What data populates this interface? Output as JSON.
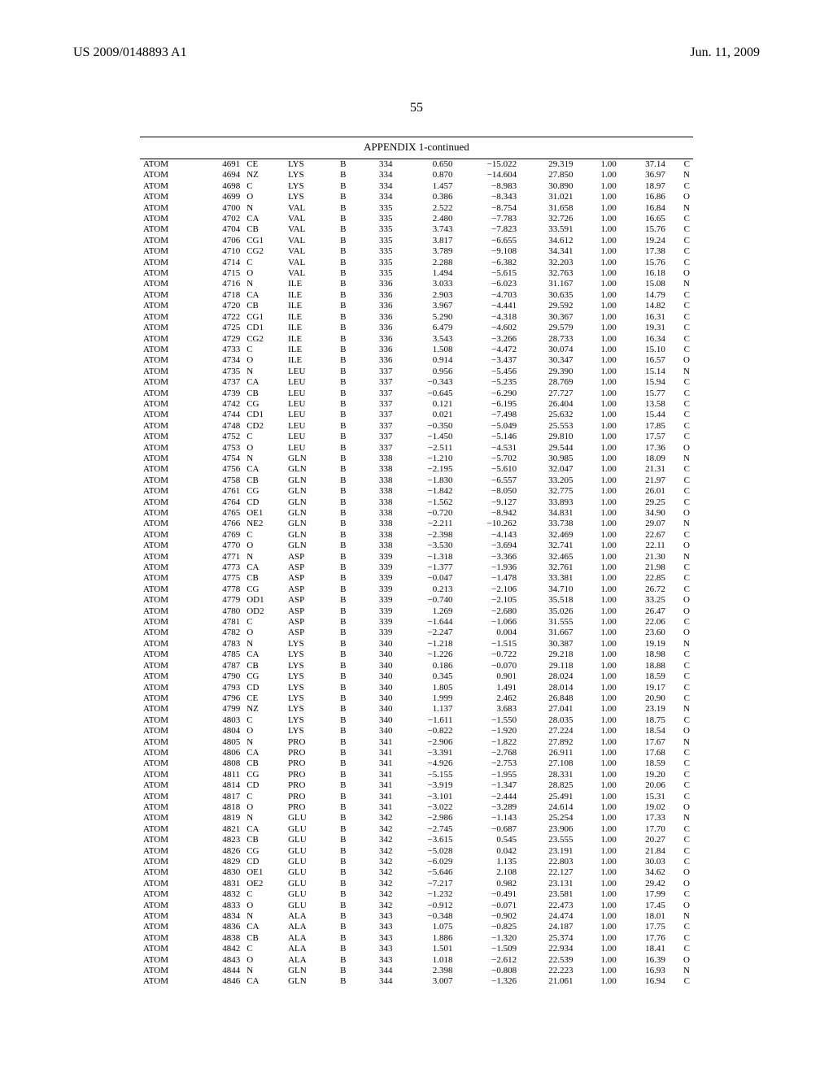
{
  "header": {
    "left": "US 2009/0148893 A1",
    "right": "Jun. 11, 2009"
  },
  "page_number": "55",
  "table": {
    "title": "APPENDIX 1-continued",
    "rows": [
      [
        "ATOM",
        "4691",
        "CE",
        "LYS",
        "B",
        "334",
        "0.650",
        "−15.022",
        "29.319",
        "1.00",
        "37.14",
        "C"
      ],
      [
        "ATOM",
        "4694",
        "NZ",
        "LYS",
        "B",
        "334",
        "0.870",
        "−14.604",
        "27.850",
        "1.00",
        "36.97",
        "N"
      ],
      [
        "ATOM",
        "4698",
        "C",
        "LYS",
        "B",
        "334",
        "1.457",
        "−8.983",
        "30.890",
        "1.00",
        "18.97",
        "C"
      ],
      [
        "ATOM",
        "4699",
        "O",
        "LYS",
        "B",
        "334",
        "0.386",
        "−8.343",
        "31.021",
        "1.00",
        "16.86",
        "O"
      ],
      [
        "ATOM",
        "4700",
        "N",
        "VAL",
        "B",
        "335",
        "2.522",
        "−8.754",
        "31.658",
        "1.00",
        "16.84",
        "N"
      ],
      [
        "ATOM",
        "4702",
        "CA",
        "VAL",
        "B",
        "335",
        "2.480",
        "−7.783",
        "32.726",
        "1.00",
        "16.65",
        "C"
      ],
      [
        "ATOM",
        "4704",
        "CB",
        "VAL",
        "B",
        "335",
        "3.743",
        "−7.823",
        "33.591",
        "1.00",
        "15.76",
        "C"
      ],
      [
        "ATOM",
        "4706",
        "CG1",
        "VAL",
        "B",
        "335",
        "3.817",
        "−6.655",
        "34.612",
        "1.00",
        "19.24",
        "C"
      ],
      [
        "ATOM",
        "4710",
        "CG2",
        "VAL",
        "B",
        "335",
        "3.789",
        "−9.108",
        "34.341",
        "1.00",
        "17.38",
        "C"
      ],
      [
        "ATOM",
        "4714",
        "C",
        "VAL",
        "B",
        "335",
        "2.288",
        "−6.382",
        "32.203",
        "1.00",
        "15.76",
        "C"
      ],
      [
        "ATOM",
        "4715",
        "O",
        "VAL",
        "B",
        "335",
        "1.494",
        "−5.615",
        "32.763",
        "1.00",
        "16.18",
        "O"
      ],
      [
        "ATOM",
        "4716",
        "N",
        "ILE",
        "B",
        "336",
        "3.033",
        "−6.023",
        "31.167",
        "1.00",
        "15.08",
        "N"
      ],
      [
        "ATOM",
        "4718",
        "CA",
        "ILE",
        "B",
        "336",
        "2.903",
        "−4.703",
        "30.635",
        "1.00",
        "14.79",
        "C"
      ],
      [
        "ATOM",
        "4720",
        "CB",
        "ILE",
        "B",
        "336",
        "3.967",
        "−4.441",
        "29.592",
        "1.00",
        "14.82",
        "C"
      ],
      [
        "ATOM",
        "4722",
        "CG1",
        "ILE",
        "B",
        "336",
        "5.290",
        "−4.318",
        "30.367",
        "1.00",
        "16.31",
        "C"
      ],
      [
        "ATOM",
        "4725",
        "CD1",
        "ILE",
        "B",
        "336",
        "6.479",
        "−4.602",
        "29.579",
        "1.00",
        "19.31",
        "C"
      ],
      [
        "ATOM",
        "4729",
        "CG2",
        "ILE",
        "B",
        "336",
        "3.543",
        "−3.266",
        "28.733",
        "1.00",
        "16.34",
        "C"
      ],
      [
        "ATOM",
        "4733",
        "C",
        "ILE",
        "B",
        "336",
        "1.508",
        "−4.472",
        "30.074",
        "1.00",
        "15.10",
        "C"
      ],
      [
        "ATOM",
        "4734",
        "O",
        "ILE",
        "B",
        "336",
        "0.914",
        "−3.437",
        "30.347",
        "1.00",
        "16.57",
        "O"
      ],
      [
        "ATOM",
        "4735",
        "N",
        "LEU",
        "B",
        "337",
        "0.956",
        "−5.456",
        "29.390",
        "1.00",
        "15.14",
        "N"
      ],
      [
        "ATOM",
        "4737",
        "CA",
        "LEU",
        "B",
        "337",
        "−0.343",
        "−5.235",
        "28.769",
        "1.00",
        "15.94",
        "C"
      ],
      [
        "ATOM",
        "4739",
        "CB",
        "LEU",
        "B",
        "337",
        "−0.645",
        "−6.290",
        "27.727",
        "1.00",
        "15.77",
        "C"
      ],
      [
        "ATOM",
        "4742",
        "CG",
        "LEU",
        "B",
        "337",
        "0.121",
        "−6.195",
        "26.404",
        "1.00",
        "13.58",
        "C"
      ],
      [
        "ATOM",
        "4744",
        "CD1",
        "LEU",
        "B",
        "337",
        "0.021",
        "−7.498",
        "25.632",
        "1.00",
        "15.44",
        "C"
      ],
      [
        "ATOM",
        "4748",
        "CD2",
        "LEU",
        "B",
        "337",
        "−0.350",
        "−5.049",
        "25.553",
        "1.00",
        "17.85",
        "C"
      ],
      [
        "ATOM",
        "4752",
        "C",
        "LEU",
        "B",
        "337",
        "−1.450",
        "−5.146",
        "29.810",
        "1.00",
        "17.57",
        "C"
      ],
      [
        "ATOM",
        "4753",
        "O",
        "LEU",
        "B",
        "337",
        "−2.511",
        "−4.531",
        "29.544",
        "1.00",
        "17.36",
        "O"
      ],
      [
        "ATOM",
        "4754",
        "N",
        "GLN",
        "B",
        "338",
        "−1.210",
        "−5.702",
        "30.985",
        "1.00",
        "18.09",
        "N"
      ],
      [
        "ATOM",
        "4756",
        "CA",
        "GLN",
        "B",
        "338",
        "−2.195",
        "−5.610",
        "32.047",
        "1.00",
        "21.31",
        "C"
      ],
      [
        "ATOM",
        "4758",
        "CB",
        "GLN",
        "B",
        "338",
        "−1.830",
        "−6.557",
        "33.205",
        "1.00",
        "21.97",
        "C"
      ],
      [
        "ATOM",
        "4761",
        "CG",
        "GLN",
        "B",
        "338",
        "−1.842",
        "−8.050",
        "32.775",
        "1.00",
        "26.01",
        "C"
      ],
      [
        "ATOM",
        "4764",
        "CD",
        "GLN",
        "B",
        "338",
        "−1.562",
        "−9.127",
        "33.893",
        "1.00",
        "29.25",
        "C"
      ],
      [
        "ATOM",
        "4765",
        "OE1",
        "GLN",
        "B",
        "338",
        "−0.720",
        "−8.942",
        "34.831",
        "1.00",
        "34.90",
        "O"
      ],
      [
        "ATOM",
        "4766",
        "NE2",
        "GLN",
        "B",
        "338",
        "−2.211",
        "−10.262",
        "33.738",
        "1.00",
        "29.07",
        "N"
      ],
      [
        "ATOM",
        "4769",
        "C",
        "GLN",
        "B",
        "338",
        "−2.398",
        "−4.143",
        "32.469",
        "1.00",
        "22.67",
        "C"
      ],
      [
        "ATOM",
        "4770",
        "O",
        "GLN",
        "B",
        "338",
        "−3.530",
        "−3.694",
        "32.741",
        "1.00",
        "22.11",
        "O"
      ],
      [
        "ATOM",
        "4771",
        "N",
        "ASP",
        "B",
        "339",
        "−1.318",
        "−3.366",
        "32.465",
        "1.00",
        "21.30",
        "N"
      ],
      [
        "ATOM",
        "4773",
        "CA",
        "ASP",
        "B",
        "339",
        "−1.377",
        "−1.936",
        "32.761",
        "1.00",
        "21.98",
        "C"
      ],
      [
        "ATOM",
        "4775",
        "CB",
        "ASP",
        "B",
        "339",
        "−0.047",
        "−1.478",
        "33.381",
        "1.00",
        "22.85",
        "C"
      ],
      [
        "ATOM",
        "4778",
        "CG",
        "ASP",
        "B",
        "339",
        "0.213",
        "−2.106",
        "34.710",
        "1.00",
        "26.72",
        "C"
      ],
      [
        "ATOM",
        "4779",
        "OD1",
        "ASP",
        "B",
        "339",
        "−0.740",
        "−2.105",
        "35.518",
        "1.00",
        "33.25",
        "O"
      ],
      [
        "ATOM",
        "4780",
        "OD2",
        "ASP",
        "B",
        "339",
        "1.269",
        "−2.680",
        "35.026",
        "1.00",
        "26.47",
        "O"
      ],
      [
        "ATOM",
        "4781",
        "C",
        "ASP",
        "B",
        "339",
        "−1.644",
        "−1.066",
        "31.555",
        "1.00",
        "22.06",
        "C"
      ],
      [
        "ATOM",
        "4782",
        "O",
        "ASP",
        "B",
        "339",
        "−2.247",
        "0.004",
        "31.667",
        "1.00",
        "23.60",
        "O"
      ],
      [
        "ATOM",
        "4783",
        "N",
        "LYS",
        "B",
        "340",
        "−1.218",
        "−1.515",
        "30.387",
        "1.00",
        "19.19",
        "N"
      ],
      [
        "ATOM",
        "4785",
        "CA",
        "LYS",
        "B",
        "340",
        "−1.226",
        "−0.722",
        "29.218",
        "1.00",
        "18.98",
        "C"
      ],
      [
        "ATOM",
        "4787",
        "CB",
        "LYS",
        "B",
        "340",
        "0.186",
        "−0.070",
        "29.118",
        "1.00",
        "18.88",
        "C"
      ],
      [
        "ATOM",
        "4790",
        "CG",
        "LYS",
        "B",
        "340",
        "0.345",
        "0.901",
        "28.024",
        "1.00",
        "18.59",
        "C"
      ],
      [
        "ATOM",
        "4793",
        "CD",
        "LYS",
        "B",
        "340",
        "1.805",
        "1.491",
        "28.014",
        "1.00",
        "19.17",
        "C"
      ],
      [
        "ATOM",
        "4796",
        "CE",
        "LYS",
        "B",
        "340",
        "1.999",
        "2.462",
        "26.848",
        "1.00",
        "20.90",
        "C"
      ],
      [
        "ATOM",
        "4799",
        "NZ",
        "LYS",
        "B",
        "340",
        "1.137",
        "3.683",
        "27.041",
        "1.00",
        "23.19",
        "N"
      ],
      [
        "ATOM",
        "4803",
        "C",
        "LYS",
        "B",
        "340",
        "−1.611",
        "−1.550",
        "28.035",
        "1.00",
        "18.75",
        "C"
      ],
      [
        "ATOM",
        "4804",
        "O",
        "LYS",
        "B",
        "340",
        "−0.822",
        "−1.920",
        "27.224",
        "1.00",
        "18.54",
        "O"
      ],
      [
        "ATOM",
        "4805",
        "N",
        "PRO",
        "B",
        "341",
        "−2.906",
        "−1.822",
        "27.892",
        "1.00",
        "17.67",
        "N"
      ],
      [
        "ATOM",
        "4806",
        "CA",
        "PRO",
        "B",
        "341",
        "−3.391",
        "−2.768",
        "26.911",
        "1.00",
        "17.68",
        "C"
      ],
      [
        "ATOM",
        "4808",
        "CB",
        "PRO",
        "B",
        "341",
        "−4.926",
        "−2.753",
        "27.108",
        "1.00",
        "18.59",
        "C"
      ],
      [
        "ATOM",
        "4811",
        "CG",
        "PRO",
        "B",
        "341",
        "−5.155",
        "−1.955",
        "28.331",
        "1.00",
        "19.20",
        "C"
      ],
      [
        "ATOM",
        "4814",
        "CD",
        "PRO",
        "B",
        "341",
        "−3.919",
        "−1.347",
        "28.825",
        "1.00",
        "20.06",
        "C"
      ],
      [
        "ATOM",
        "4817",
        "C",
        "PRO",
        "B",
        "341",
        "−3.101",
        "−2.444",
        "25.491",
        "1.00",
        "15.31",
        "C"
      ],
      [
        "ATOM",
        "4818",
        "O",
        "PRO",
        "B",
        "341",
        "−3.022",
        "−3.289",
        "24.614",
        "1.00",
        "19.02",
        "O"
      ],
      [
        "ATOM",
        "4819",
        "N",
        "GLU",
        "B",
        "342",
        "−2.986",
        "−1.143",
        "25.254",
        "1.00",
        "17.33",
        "N"
      ],
      [
        "ATOM",
        "4821",
        "CA",
        "GLU",
        "B",
        "342",
        "−2.745",
        "−0.687",
        "23.906",
        "1.00",
        "17.70",
        "C"
      ],
      [
        "ATOM",
        "4823",
        "CB",
        "GLU",
        "B",
        "342",
        "−3.615",
        "0.545",
        "23.555",
        "1.00",
        "20.27",
        "C"
      ],
      [
        "ATOM",
        "4826",
        "CG",
        "GLU",
        "B",
        "342",
        "−5.028",
        "0.042",
        "23.191",
        "1.00",
        "21.84",
        "C"
      ],
      [
        "ATOM",
        "4829",
        "CD",
        "GLU",
        "B",
        "342",
        "−6.029",
        "1.135",
        "22.803",
        "1.00",
        "30.03",
        "C"
      ],
      [
        "ATOM",
        "4830",
        "OE1",
        "GLU",
        "B",
        "342",
        "−5.646",
        "2.108",
        "22.127",
        "1.00",
        "34.62",
        "O"
      ],
      [
        "ATOM",
        "4831",
        "OE2",
        "GLU",
        "B",
        "342",
        "−7.217",
        "0.982",
        "23.131",
        "1.00",
        "29.42",
        "O"
      ],
      [
        "ATOM",
        "4832",
        "C",
        "GLU",
        "B",
        "342",
        "−1.232",
        "−0.491",
        "23.581",
        "1.00",
        "17.99",
        "C"
      ],
      [
        "ATOM",
        "4833",
        "O",
        "GLU",
        "B",
        "342",
        "−0.912",
        "−0.071",
        "22.473",
        "1.00",
        "17.45",
        "O"
      ],
      [
        "ATOM",
        "4834",
        "N",
        "ALA",
        "B",
        "343",
        "−0.348",
        "−0.902",
        "24.474",
        "1.00",
        "18.01",
        "N"
      ],
      [
        "ATOM",
        "4836",
        "CA",
        "ALA",
        "B",
        "343",
        "1.075",
        "−0.825",
        "24.187",
        "1.00",
        "17.75",
        "C"
      ],
      [
        "ATOM",
        "4838",
        "CB",
        "ALA",
        "B",
        "343",
        "1.886",
        "−1.320",
        "25.374",
        "1.00",
        "17.76",
        "C"
      ],
      [
        "ATOM",
        "4842",
        "C",
        "ALA",
        "B",
        "343",
        "1.501",
        "−1.509",
        "22.934",
        "1.00",
        "18.41",
        "C"
      ],
      [
        "ATOM",
        "4843",
        "O",
        "ALA",
        "B",
        "343",
        "1.018",
        "−2.612",
        "22.539",
        "1.00",
        "16.39",
        "O"
      ],
      [
        "ATOM",
        "4844",
        "N",
        "GLN",
        "B",
        "344",
        "2.398",
        "−0.808",
        "22.223",
        "1.00",
        "16.93",
        "N"
      ],
      [
        "ATOM",
        "4846",
        "CA",
        "GLN",
        "B",
        "344",
        "3.007",
        "−1.326",
        "21.061",
        "1.00",
        "16.94",
        "C"
      ]
    ]
  }
}
